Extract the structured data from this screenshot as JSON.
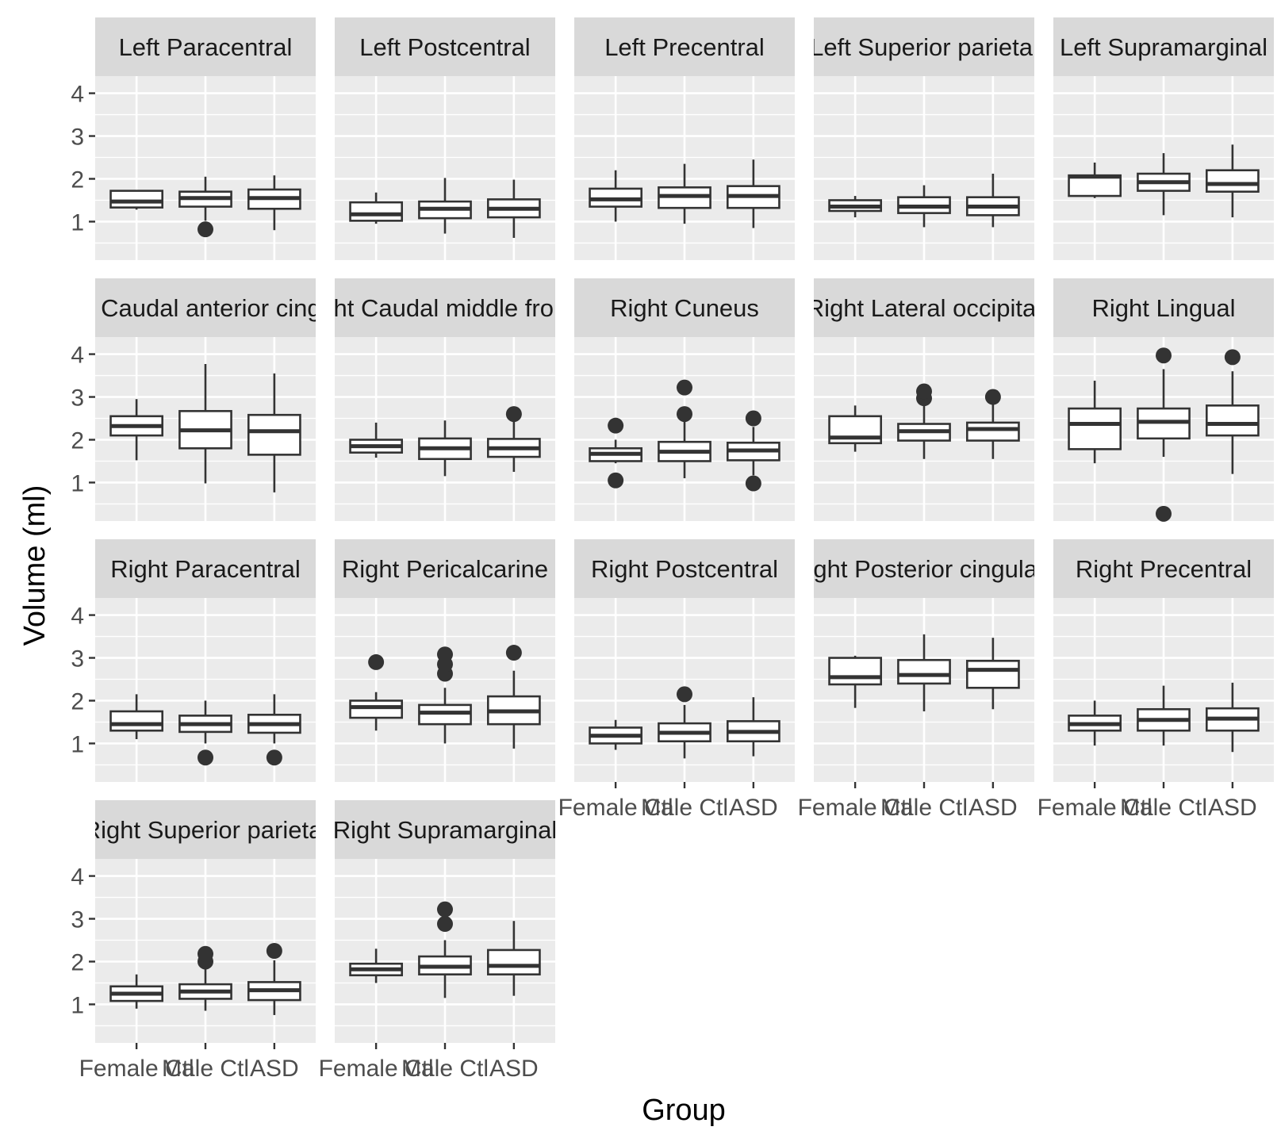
{
  "chart_data": {
    "type": "boxplot",
    "xlabel": "Group",
    "ylabel": "Volume (ml)",
    "categories": [
      "Female Ctl",
      "Male Ctl",
      "ASD"
    ],
    "y_ticks": [
      1,
      2,
      3,
      4
    ],
    "y_range": [
      0.1,
      4.4
    ],
    "grid": true,
    "facets": [
      {
        "label": "Left Paracentral",
        "boxes": [
          {
            "min": 1.28,
            "q1": 1.33,
            "median": 1.47,
            "q3": 1.72,
            "max": 1.72,
            "outliers": []
          },
          {
            "min": 1.02,
            "q1": 1.35,
            "median": 1.55,
            "q3": 1.7,
            "max": 2.05,
            "outliers": [
              0.82
            ]
          },
          {
            "min": 0.8,
            "q1": 1.3,
            "median": 1.55,
            "q3": 1.75,
            "max": 2.08,
            "outliers": []
          }
        ]
      },
      {
        "label": "Left Postcentral",
        "boxes": [
          {
            "min": 0.95,
            "q1": 1.02,
            "median": 1.17,
            "q3": 1.45,
            "max": 1.68,
            "outliers": []
          },
          {
            "min": 0.72,
            "q1": 1.08,
            "median": 1.3,
            "q3": 1.47,
            "max": 2.02,
            "outliers": []
          },
          {
            "min": 0.62,
            "q1": 1.1,
            "median": 1.3,
            "q3": 1.52,
            "max": 1.98,
            "outliers": []
          }
        ]
      },
      {
        "label": "Left Precentral",
        "boxes": [
          {
            "min": 1.0,
            "q1": 1.35,
            "median": 1.52,
            "q3": 1.77,
            "max": 2.2,
            "outliers": []
          },
          {
            "min": 0.95,
            "q1": 1.32,
            "median": 1.6,
            "q3": 1.8,
            "max": 2.35,
            "outliers": []
          },
          {
            "min": 0.85,
            "q1": 1.32,
            "median": 1.6,
            "q3": 1.83,
            "max": 2.45,
            "outliers": []
          }
        ]
      },
      {
        "label": "Left Superior parietal",
        "boxes": [
          {
            "min": 1.1,
            "q1": 1.25,
            "median": 1.35,
            "q3": 1.5,
            "max": 1.6,
            "outliers": []
          },
          {
            "min": 0.87,
            "q1": 1.2,
            "median": 1.35,
            "q3": 1.57,
            "max": 1.85,
            "outliers": []
          },
          {
            "min": 0.87,
            "q1": 1.15,
            "median": 1.35,
            "q3": 1.57,
            "max": 2.12,
            "outliers": []
          }
        ]
      },
      {
        "label": "Left Supramarginal",
        "boxes": [
          {
            "min": 1.55,
            "q1": 1.6,
            "median": 2.05,
            "q3": 2.08,
            "max": 2.38,
            "outliers": []
          },
          {
            "min": 1.15,
            "q1": 1.72,
            "median": 1.92,
            "q3": 2.12,
            "max": 2.6,
            "outliers": []
          },
          {
            "min": 1.1,
            "q1": 1.7,
            "median": 1.88,
            "q3": 2.2,
            "max": 2.8,
            "outliers": []
          }
        ]
      },
      {
        "label": "Right Caudal anterior cingulate",
        "boxes": [
          {
            "min": 1.52,
            "q1": 2.1,
            "median": 2.32,
            "q3": 2.55,
            "max": 2.95,
            "outliers": []
          },
          {
            "min": 0.98,
            "q1": 1.8,
            "median": 2.22,
            "q3": 2.67,
            "max": 3.77,
            "outliers": []
          },
          {
            "min": 0.77,
            "q1": 1.65,
            "median": 2.2,
            "q3": 2.58,
            "max": 3.55,
            "outliers": []
          }
        ]
      },
      {
        "label": "Right Caudal middle frontal",
        "boxes": [
          {
            "min": 1.58,
            "q1": 1.7,
            "median": 1.85,
            "q3": 2.0,
            "max": 2.4,
            "outliers": []
          },
          {
            "min": 1.15,
            "q1": 1.55,
            "median": 1.8,
            "q3": 2.03,
            "max": 2.45,
            "outliers": []
          },
          {
            "min": 1.25,
            "q1": 1.6,
            "median": 1.8,
            "q3": 2.02,
            "max": 2.5,
            "outliers": [
              2.6
            ]
          }
        ]
      },
      {
        "label": "Right Cuneus",
        "boxes": [
          {
            "min": 1.45,
            "q1": 1.5,
            "median": 1.67,
            "q3": 1.8,
            "max": 2.0,
            "outliers": [
              2.33,
              1.05
            ]
          },
          {
            "min": 1.1,
            "q1": 1.5,
            "median": 1.72,
            "q3": 1.95,
            "max": 2.45,
            "outliers": [
              2.6,
              3.22
            ]
          },
          {
            "min": 1.17,
            "q1": 1.52,
            "median": 1.75,
            "q3": 1.93,
            "max": 2.3,
            "outliers": [
              2.5,
              0.98
            ]
          }
        ]
      },
      {
        "label": "Right Lateral occipital",
        "boxes": [
          {
            "min": 1.72,
            "q1": 1.92,
            "median": 2.05,
            "q3": 2.55,
            "max": 2.8,
            "outliers": []
          },
          {
            "min": 1.55,
            "q1": 1.98,
            "median": 2.2,
            "q3": 2.37,
            "max": 2.85,
            "outliers": [
              2.97,
              3.13
            ]
          },
          {
            "min": 1.55,
            "q1": 1.98,
            "median": 2.25,
            "q3": 2.4,
            "max": 2.87,
            "outliers": [
              3.0
            ]
          }
        ]
      },
      {
        "label": "Right Lingual",
        "boxes": [
          {
            "min": 1.45,
            "q1": 1.78,
            "median": 2.37,
            "q3": 2.73,
            "max": 3.38,
            "outliers": []
          },
          {
            "min": 1.6,
            "q1": 2.03,
            "median": 2.42,
            "q3": 2.73,
            "max": 3.65,
            "outliers": [
              3.97,
              0.27
            ]
          },
          {
            "min": 1.2,
            "q1": 2.1,
            "median": 2.37,
            "q3": 2.8,
            "max": 3.6,
            "outliers": [
              3.93
            ]
          }
        ]
      },
      {
        "label": "Right Paracentral",
        "boxes": [
          {
            "min": 1.1,
            "q1": 1.3,
            "median": 1.45,
            "q3": 1.75,
            "max": 2.15,
            "outliers": []
          },
          {
            "min": 1.0,
            "q1": 1.27,
            "median": 1.45,
            "q3": 1.65,
            "max": 2.0,
            "outliers": [
              0.67
            ]
          },
          {
            "min": 1.0,
            "q1": 1.25,
            "median": 1.45,
            "q3": 1.67,
            "max": 2.15,
            "outliers": [
              0.67
            ]
          }
        ]
      },
      {
        "label": "Right Pericalcarine",
        "boxes": [
          {
            "min": 1.3,
            "q1": 1.6,
            "median": 1.85,
            "q3": 2.0,
            "max": 2.2,
            "outliers": [
              2.9
            ]
          },
          {
            "min": 1.0,
            "q1": 1.45,
            "median": 1.72,
            "q3": 1.9,
            "max": 2.3,
            "outliers": [
              2.63,
              2.85,
              3.08
            ]
          },
          {
            "min": 0.88,
            "q1": 1.45,
            "median": 1.75,
            "q3": 2.1,
            "max": 2.7,
            "outliers": [
              3.12
            ]
          }
        ]
      },
      {
        "label": "Right Postcentral",
        "boxes": [
          {
            "min": 0.85,
            "q1": 1.0,
            "median": 1.18,
            "q3": 1.37,
            "max": 1.55,
            "outliers": []
          },
          {
            "min": 0.65,
            "q1": 1.05,
            "median": 1.25,
            "q3": 1.47,
            "max": 1.9,
            "outliers": [
              2.15
            ]
          },
          {
            "min": 0.7,
            "q1": 1.05,
            "median": 1.27,
            "q3": 1.52,
            "max": 2.08,
            "outliers": []
          }
        ]
      },
      {
        "label": "Right Posterior cingulate",
        "boxes": [
          {
            "min": 1.83,
            "q1": 2.38,
            "median": 2.55,
            "q3": 3.0,
            "max": 3.05,
            "outliers": []
          },
          {
            "min": 1.75,
            "q1": 2.4,
            "median": 2.6,
            "q3": 2.95,
            "max": 3.55,
            "outliers": []
          },
          {
            "min": 1.8,
            "q1": 2.3,
            "median": 2.72,
            "q3": 2.93,
            "max": 3.47,
            "outliers": []
          }
        ]
      },
      {
        "label": "Right Precentral",
        "boxes": [
          {
            "min": 0.95,
            "q1": 1.3,
            "median": 1.45,
            "q3": 1.65,
            "max": 2.0,
            "outliers": []
          },
          {
            "min": 0.95,
            "q1": 1.3,
            "median": 1.55,
            "q3": 1.8,
            "max": 2.35,
            "outliers": []
          },
          {
            "min": 0.8,
            "q1": 1.3,
            "median": 1.58,
            "q3": 1.82,
            "max": 2.42,
            "outliers": []
          }
        ]
      },
      {
        "label": "Right Superior parietal",
        "boxes": [
          {
            "min": 0.9,
            "q1": 1.08,
            "median": 1.25,
            "q3": 1.42,
            "max": 1.7,
            "outliers": []
          },
          {
            "min": 0.85,
            "q1": 1.13,
            "median": 1.3,
            "q3": 1.47,
            "max": 1.85,
            "outliers": [
              2.0,
              2.18
            ]
          },
          {
            "min": 0.75,
            "q1": 1.1,
            "median": 1.33,
            "q3": 1.52,
            "max": 2.03,
            "outliers": [
              2.25
            ]
          }
        ]
      },
      {
        "label": "Right Supramarginal",
        "boxes": [
          {
            "min": 1.5,
            "q1": 1.68,
            "median": 1.82,
            "q3": 1.95,
            "max": 2.3,
            "outliers": []
          },
          {
            "min": 1.15,
            "q1": 1.7,
            "median": 1.88,
            "q3": 2.12,
            "max": 2.5,
            "outliers": [
              2.88,
              3.22
            ]
          },
          {
            "min": 1.2,
            "q1": 1.7,
            "median": 1.9,
            "q3": 2.27,
            "max": 2.95,
            "outliers": []
          }
        ]
      }
    ]
  }
}
